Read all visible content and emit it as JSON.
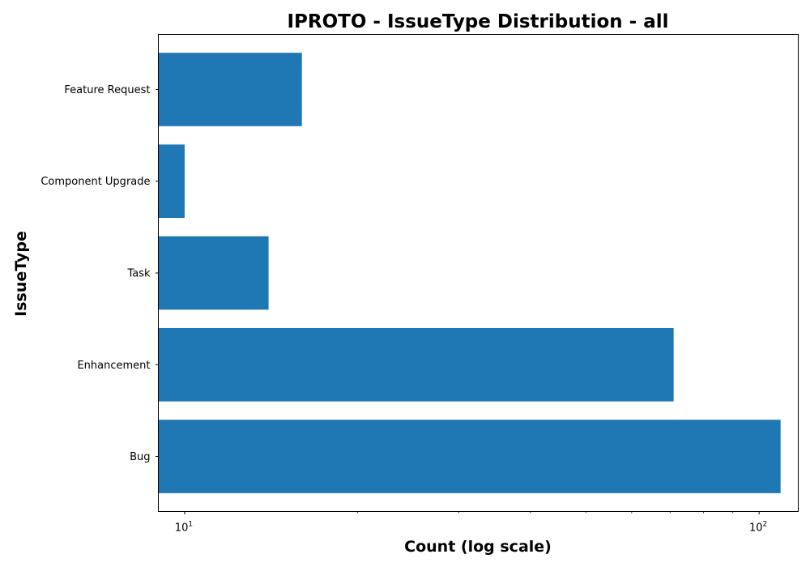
{
  "chart_data": {
    "type": "bar",
    "orientation": "horizontal",
    "title": "IPROTO - IssueType Distribution - all",
    "xlabel": "Count (log scale)",
    "ylabel": "IssueType",
    "x_scale": "log",
    "xlim": [
      9.0,
      117.0
    ],
    "categories": [
      "Bug",
      "Enhancement",
      "Task",
      "Component Upgrade",
      "Feature Request"
    ],
    "values": [
      109,
      71,
      14,
      10,
      16
    ],
    "x_ticks": [
      {
        "base": "10",
        "exp": "1",
        "value": 10
      },
      {
        "base": "10",
        "exp": "2",
        "value": 100
      }
    ],
    "bar_color": "#1f77b4",
    "grid": false
  }
}
